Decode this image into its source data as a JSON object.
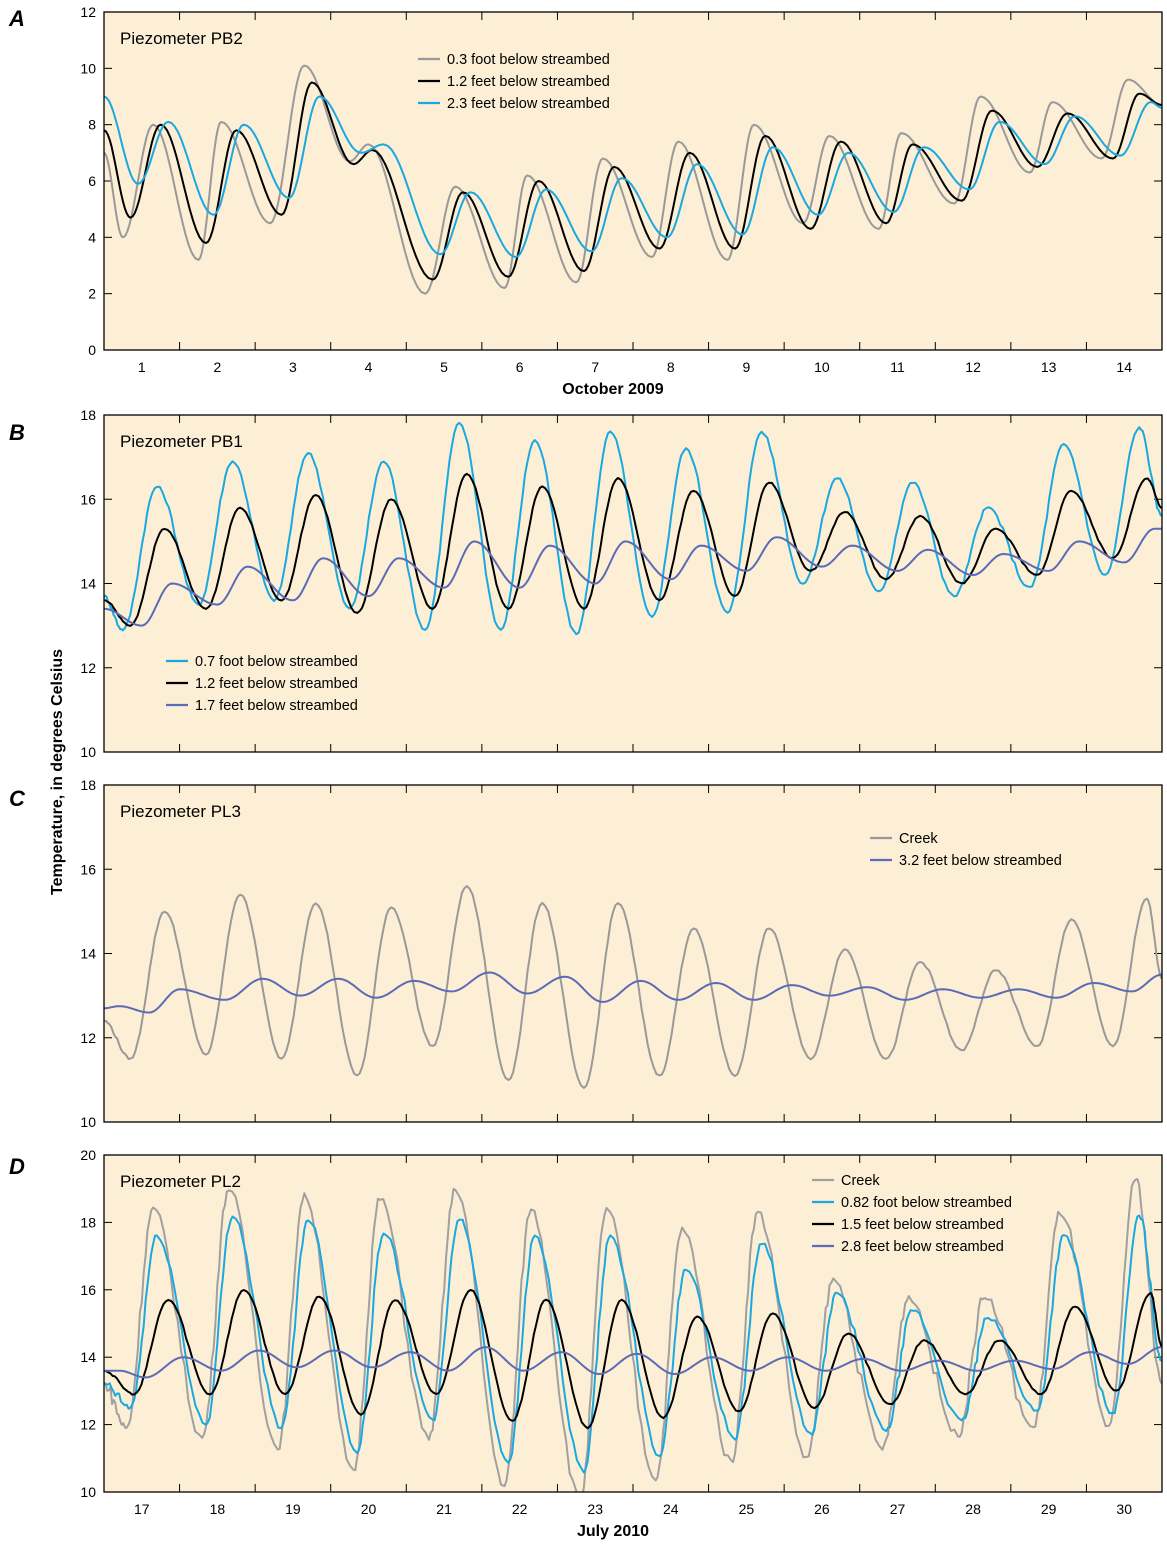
{
  "figure": {
    "ylabel": "Temperature, in degrees Celsius",
    "colors": {
      "plot_background": "#fcefd6",
      "gray": "#999999",
      "black": "#000000",
      "cyan": "#1aa8e0",
      "blue": "#5b6bb5"
    }
  },
  "chart_data": [
    {
      "type": "line",
      "panel": "A",
      "title": "Piezometer PB2",
      "xlabel": "October 2009",
      "ylim": [
        0,
        12
      ],
      "yticks": [
        0,
        2,
        4,
        6,
        8,
        10,
        12
      ],
      "xlim": [
        0.5,
        14.5
      ],
      "xticks": [
        1,
        2,
        3,
        4,
        5,
        6,
        7,
        8,
        9,
        10,
        11,
        12,
        13,
        14
      ],
      "tick_labels_x": [
        "1",
        "2",
        "3",
        "4",
        "5",
        "6",
        "7",
        "8",
        "9",
        "10",
        "11",
        "12",
        "13",
        "14"
      ],
      "legend_position": "top-center",
      "grid": false,
      "series": [
        {
          "name": "0.3 foot below streambed",
          "color": "#999999",
          "noise": 0,
          "x": [
            0.5,
            0.75,
            1.15,
            1.75,
            2.05,
            2.7,
            3.15,
            3.75,
            4.0,
            4.75,
            5.15,
            5.8,
            6.1,
            6.75,
            7.1,
            7.75,
            8.1,
            8.75,
            9.1,
            9.75,
            10.1,
            10.75,
            11.05,
            11.75,
            12.1,
            12.75,
            13.05,
            13.7,
            14.05,
            14.5
          ],
          "y": [
            7.0,
            4.0,
            8.0,
            3.2,
            8.1,
            4.5,
            10.1,
            6.7,
            7.3,
            2.0,
            5.8,
            2.2,
            6.2,
            2.4,
            6.8,
            3.3,
            7.4,
            3.2,
            8.0,
            4.5,
            7.6,
            4.3,
            7.7,
            5.2,
            9.0,
            6.3,
            8.8,
            6.8,
            9.6,
            8.7
          ]
        },
        {
          "name": "1.2 feet below streambed",
          "color": "#000000",
          "noise": 0,
          "x": [
            0.5,
            0.85,
            1.25,
            1.85,
            2.25,
            2.85,
            3.25,
            3.8,
            4.05,
            4.85,
            5.25,
            5.85,
            6.25,
            6.85,
            7.25,
            7.85,
            8.25,
            8.85,
            9.25,
            9.85,
            10.25,
            10.85,
            11.2,
            11.85,
            12.25,
            12.85,
            13.25,
            13.85,
            14.2,
            14.5
          ],
          "y": [
            7.8,
            4.7,
            8.0,
            3.8,
            7.8,
            4.8,
            9.5,
            6.6,
            7.1,
            2.5,
            5.6,
            2.6,
            6.0,
            2.8,
            6.5,
            3.6,
            7.0,
            3.6,
            7.6,
            4.3,
            7.4,
            4.5,
            7.3,
            5.3,
            8.5,
            6.5,
            8.4,
            6.8,
            9.1,
            8.7
          ]
        },
        {
          "name": "2.3 feet below streambed",
          "color": "#1aa8e0",
          "noise": 0,
          "x": [
            0.5,
            0.95,
            1.35,
            1.95,
            2.35,
            2.95,
            3.35,
            3.9,
            4.2,
            4.95,
            5.35,
            5.95,
            6.35,
            6.95,
            7.35,
            7.95,
            8.35,
            8.95,
            9.35,
            9.95,
            10.35,
            10.95,
            11.35,
            11.95,
            12.35,
            12.95,
            13.35,
            13.95,
            14.35,
            14.5
          ],
          "y": [
            9.0,
            5.9,
            8.1,
            4.8,
            8.0,
            5.4,
            9.0,
            7.0,
            7.3,
            3.4,
            5.6,
            3.3,
            5.7,
            3.5,
            6.1,
            4.0,
            6.6,
            4.1,
            7.2,
            4.8,
            7.0,
            4.9,
            7.2,
            5.7,
            8.1,
            6.6,
            8.3,
            6.9,
            8.8,
            8.6
          ]
        }
      ]
    },
    {
      "type": "line",
      "panel": "B",
      "title": "Piezometer PB1",
      "xlabel": "",
      "ylim": [
        10,
        18
      ],
      "yticks": [
        10,
        12,
        14,
        16,
        18
      ],
      "xlim": [
        0.5,
        14.5
      ],
      "xticks": [
        1,
        2,
        3,
        4,
        5,
        6,
        7,
        8,
        9,
        10,
        11,
        12,
        13,
        14
      ],
      "tick_labels_x": [],
      "legend_position": "bottom-left",
      "grid": false,
      "series": [
        {
          "name": "0.7 foot below streambed",
          "color": "#1aa8e0",
          "noise": 0.05,
          "x": [
            0.5,
            0.75,
            1.2,
            1.75,
            2.2,
            2.75,
            3.2,
            3.75,
            4.2,
            4.75,
            5.2,
            5.75,
            6.2,
            6.75,
            7.2,
            7.75,
            8.2,
            8.75,
            9.2,
            9.75,
            10.2,
            10.75,
            11.2,
            11.75,
            12.2,
            12.75,
            13.2,
            13.75,
            14.2,
            14.5
          ],
          "y": [
            13.7,
            12.9,
            16.3,
            13.5,
            16.9,
            13.6,
            17.1,
            13.4,
            16.9,
            12.9,
            17.8,
            12.9,
            17.4,
            12.8,
            17.6,
            13.2,
            17.2,
            13.3,
            17.6,
            14.0,
            16.5,
            13.8,
            16.4,
            13.7,
            15.8,
            13.9,
            17.3,
            14.2,
            17.7,
            15.6
          ]
        },
        {
          "name": "1.2 feet below streambed",
          "color": "#000000",
          "noise": 0.02,
          "x": [
            0.5,
            0.85,
            1.3,
            1.85,
            2.3,
            2.85,
            3.3,
            3.85,
            4.3,
            4.85,
            5.3,
            5.85,
            6.3,
            6.85,
            7.3,
            7.85,
            8.3,
            8.85,
            9.3,
            9.85,
            10.3,
            10.85,
            11.3,
            11.85,
            12.3,
            12.85,
            13.3,
            13.85,
            14.3,
            14.5
          ],
          "y": [
            13.6,
            13.0,
            15.3,
            13.4,
            15.8,
            13.6,
            16.1,
            13.3,
            16.0,
            13.4,
            16.6,
            13.4,
            16.3,
            13.4,
            16.5,
            13.6,
            16.2,
            13.7,
            16.4,
            14.3,
            15.7,
            14.1,
            15.6,
            14.0,
            15.3,
            14.2,
            16.2,
            14.6,
            16.5,
            15.8
          ]
        },
        {
          "name": "1.7 feet below streambed",
          "color": "#5b6bb5",
          "noise": 0,
          "x": [
            0.5,
            1.0,
            1.4,
            2.0,
            2.4,
            3.0,
            3.4,
            4.0,
            4.4,
            5.0,
            5.4,
            6.0,
            6.4,
            7.0,
            7.4,
            8.0,
            8.4,
            9.0,
            9.4,
            10.0,
            10.4,
            11.0,
            11.4,
            12.0,
            12.4,
            13.0,
            13.4,
            14.0,
            14.4,
            14.5
          ],
          "y": [
            13.4,
            13.0,
            14.0,
            13.5,
            14.4,
            13.6,
            14.6,
            13.7,
            14.6,
            13.9,
            15.0,
            13.9,
            14.9,
            14.0,
            15.0,
            14.1,
            14.9,
            14.3,
            15.1,
            14.4,
            14.9,
            14.3,
            14.8,
            14.2,
            14.7,
            14.3,
            15.0,
            14.5,
            15.3,
            15.3
          ]
        }
      ]
    },
    {
      "type": "line",
      "panel": "C",
      "title": "Piezometer PL3",
      "xlabel": "",
      "ylim": [
        10,
        18
      ],
      "yticks": [
        10,
        12,
        14,
        16,
        18
      ],
      "xlim": [
        16.5,
        30.5
      ],
      "xticks": [
        17,
        18,
        19,
        20,
        21,
        22,
        23,
        24,
        25,
        26,
        27,
        28,
        29,
        30
      ],
      "tick_labels_x": [],
      "legend_position": "top-right",
      "grid": false,
      "series": [
        {
          "name": "Creek",
          "color": "#999999",
          "noise": 0.03,
          "x": [
            16.5,
            16.85,
            17.3,
            17.85,
            18.3,
            18.85,
            19.3,
            19.85,
            20.3,
            20.85,
            21.3,
            21.85,
            22.3,
            22.85,
            23.3,
            23.85,
            24.3,
            24.85,
            25.3,
            25.85,
            26.3,
            26.85,
            27.3,
            27.85,
            28.3,
            28.85,
            29.3,
            29.85,
            30.3,
            30.5
          ],
          "y": [
            12.4,
            11.5,
            15.0,
            11.6,
            15.4,
            11.5,
            15.2,
            11.1,
            15.1,
            11.8,
            15.6,
            11.0,
            15.2,
            10.8,
            15.2,
            11.1,
            14.6,
            11.1,
            14.6,
            11.5,
            14.1,
            11.5,
            13.8,
            11.7,
            13.6,
            11.8,
            14.8,
            11.8,
            15.3,
            13.4
          ]
        },
        {
          "name": "3.2 feet below streambed",
          "color": "#5b6bb5",
          "noise": 0,
          "x": [
            16.5,
            16.7,
            17.1,
            17.5,
            18.1,
            18.6,
            19.1,
            19.6,
            20.1,
            20.6,
            21.1,
            21.6,
            22.1,
            22.6,
            23.1,
            23.6,
            24.1,
            24.6,
            25.1,
            25.6,
            26.1,
            26.6,
            27.1,
            27.6,
            28.1,
            28.6,
            29.1,
            29.6,
            30.1,
            30.5
          ],
          "y": [
            12.7,
            12.75,
            12.6,
            13.15,
            12.9,
            13.4,
            13.0,
            13.4,
            12.95,
            13.35,
            13.1,
            13.55,
            13.05,
            13.45,
            12.85,
            13.35,
            12.9,
            13.3,
            12.9,
            13.25,
            13.0,
            13.2,
            12.9,
            13.15,
            12.95,
            13.15,
            12.95,
            13.3,
            13.1,
            13.5
          ]
        }
      ]
    },
    {
      "type": "line",
      "panel": "D",
      "title": "Piezometer PL2",
      "xlabel": "July 2010",
      "ylim": [
        10,
        20
      ],
      "yticks": [
        10,
        12,
        14,
        16,
        18,
        20
      ],
      "xlim": [
        16.5,
        30.5
      ],
      "xticks": [
        17,
        18,
        19,
        20,
        21,
        22,
        23,
        24,
        25,
        26,
        27,
        28,
        29,
        30
      ],
      "tick_labels_x": [
        "17",
        "18",
        "19",
        "20",
        "21",
        "22",
        "23",
        "24",
        "25",
        "26",
        "27",
        "28",
        "29",
        "30"
      ],
      "legend_position": "top-right",
      "grid": false,
      "series": [
        {
          "name": "Creek",
          "color": "#a0a0a0",
          "noise": 0.18,
          "x": [
            16.5,
            16.8,
            17.15,
            17.8,
            18.15,
            18.8,
            19.15,
            19.8,
            20.15,
            20.8,
            21.15,
            21.8,
            22.15,
            22.8,
            23.15,
            23.8,
            24.15,
            24.8,
            25.15,
            25.8,
            26.15,
            26.8,
            27.15,
            27.8,
            28.15,
            28.8,
            29.15,
            29.8,
            30.15,
            30.5
          ],
          "y": [
            13.2,
            11.9,
            18.4,
            11.6,
            19.0,
            11.3,
            18.8,
            10.6,
            18.7,
            11.6,
            19.0,
            10.2,
            18.4,
            9.8,
            18.4,
            10.4,
            17.8,
            10.9,
            18.3,
            11.0,
            16.3,
            11.3,
            15.8,
            11.7,
            15.8,
            11.9,
            18.3,
            11.9,
            19.3,
            13.2
          ]
        },
        {
          "name": "0.82 foot below streambed",
          "color": "#1aa8e0",
          "noise": 0.12,
          "x": [
            16.5,
            16.85,
            17.2,
            17.85,
            18.2,
            18.85,
            19.2,
            19.85,
            20.2,
            20.85,
            21.2,
            21.85,
            22.2,
            22.85,
            23.2,
            23.85,
            24.2,
            24.85,
            25.2,
            25.85,
            26.2,
            26.85,
            27.2,
            27.85,
            28.2,
            28.85,
            29.2,
            29.85,
            30.2,
            30.5
          ],
          "y": [
            13.2,
            12.5,
            17.6,
            12.0,
            18.2,
            11.9,
            18.1,
            11.2,
            17.7,
            12.1,
            18.1,
            10.9,
            17.6,
            10.6,
            17.6,
            11.1,
            16.6,
            11.6,
            17.4,
            11.7,
            15.9,
            11.8,
            15.4,
            12.1,
            15.2,
            12.4,
            17.6,
            12.3,
            18.2,
            13.9
          ]
        },
        {
          "name": "1.5 feet below streambed",
          "color": "#000000",
          "noise": 0.03,
          "x": [
            16.5,
            16.9,
            17.35,
            17.9,
            18.35,
            18.9,
            19.35,
            19.9,
            20.35,
            20.9,
            21.35,
            21.9,
            22.35,
            22.9,
            23.35,
            23.9,
            24.35,
            24.9,
            25.35,
            25.9,
            26.35,
            26.9,
            27.35,
            27.9,
            28.35,
            28.9,
            29.35,
            29.9,
            30.35,
            30.5
          ],
          "y": [
            13.6,
            12.9,
            15.7,
            12.9,
            16.0,
            12.9,
            15.8,
            12.3,
            15.7,
            12.9,
            16.0,
            12.1,
            15.7,
            11.9,
            15.7,
            12.2,
            15.2,
            12.4,
            15.3,
            12.5,
            14.7,
            12.6,
            14.5,
            12.9,
            14.5,
            12.9,
            15.5,
            13.0,
            15.9,
            14.3
          ]
        },
        {
          "name": "2.8 feet below streambed",
          "color": "#5b6bb5",
          "noise": 0,
          "x": [
            16.5,
            16.7,
            17.05,
            17.55,
            18.05,
            18.55,
            19.05,
            19.55,
            20.05,
            20.55,
            21.05,
            21.55,
            22.05,
            22.55,
            23.05,
            23.55,
            24.05,
            24.55,
            25.05,
            25.55,
            26.05,
            26.55,
            27.05,
            27.55,
            28.05,
            28.55,
            29.05,
            29.55,
            30.05,
            30.5
          ],
          "y": [
            13.6,
            13.6,
            13.4,
            14.0,
            13.6,
            14.2,
            13.7,
            14.2,
            13.7,
            14.15,
            13.6,
            14.3,
            13.6,
            14.15,
            13.5,
            14.1,
            13.5,
            14.0,
            13.6,
            14.0,
            13.6,
            13.95,
            13.6,
            13.9,
            13.6,
            13.9,
            13.65,
            14.15,
            13.8,
            14.3
          ]
        }
      ]
    }
  ]
}
